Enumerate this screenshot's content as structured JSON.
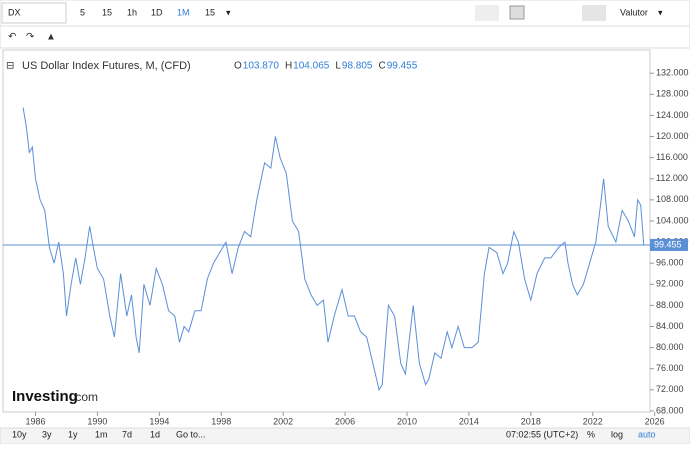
{
  "toolbar": {
    "symbol": "DX",
    "intervals": [
      "5",
      "15",
      "1h",
      "1D",
      "1M"
    ],
    "interval_select": "15",
    "language": "Valutor"
  },
  "bottom_bar": {
    "ranges": [
      "10y",
      "3y",
      "1y",
      "1m",
      "7d",
      "1d"
    ],
    "goto": "Go to...",
    "time": "07:02:55 (UTC+2)",
    "options": [
      "%",
      "log",
      "auto"
    ]
  },
  "chart_data": {
    "type": "line",
    "title": "US Dollar Index Futures, M, (CFD)",
    "ohlc": [
      {
        "label": "O",
        "text": "103.870"
      },
      {
        "label": "H",
        "text": "104.065"
      },
      {
        "label": "L",
        "text": "98.805"
      },
      {
        "label": "C",
        "text": "99.455"
      }
    ],
    "watermark": [
      "Investing",
      ".com"
    ],
    "last_price": 99.455,
    "xlim": [
      1983.9,
      2025.7
    ],
    "xticks": [
      1986,
      1990,
      1994,
      1998,
      2002,
      2006,
      2010,
      2014,
      2018,
      2022,
      2026
    ],
    "ylim": [
      67.8,
      136.4
    ],
    "yticks": [
      {
        "value": 68,
        "label": "68.000"
      },
      {
        "value": 72,
        "label": "72.000"
      },
      {
        "value": 76,
        "label": "76.000"
      },
      {
        "value": 80,
        "label": "80.000"
      },
      {
        "value": 84,
        "label": "84.000"
      },
      {
        "value": 88,
        "label": "88.000"
      },
      {
        "value": 92,
        "label": "92.000"
      },
      {
        "value": 96,
        "label": "96.000"
      },
      {
        "value": 100,
        "label": "100.000"
      },
      {
        "value": 104,
        "label": "104.000"
      },
      {
        "value": 108,
        "label": "108.000"
      },
      {
        "value": 112,
        "label": "112.000"
      },
      {
        "value": 116,
        "label": "116.000"
      },
      {
        "value": 120,
        "label": "120.000"
      },
      {
        "value": 124,
        "label": "124.000"
      },
      {
        "value": 128,
        "label": "128.000"
      },
      {
        "value": 132,
        "label": "132.000"
      }
    ],
    "series": [
      {
        "color": "#5b8fd6",
        "x": [
          1985.2,
          1985.4,
          1985.6,
          1985.8,
          1986.0,
          1986.3,
          1986.6,
          1986.9,
          1987.2,
          1987.5,
          1987.8,
          1988.0,
          1988.3,
          1988.6,
          1988.9,
          1989.2,
          1989.5,
          1989.8,
          1990.0,
          1990.4,
          1990.8,
          1991.1,
          1991.5,
          1991.9,
          1992.2,
          1992.5,
          1992.7,
          1993.0,
          1993.4,
          1993.8,
          1994.2,
          1994.6,
          1995.0,
          1995.3,
          1995.6,
          1995.9,
          1996.3,
          1996.7,
          1997.1,
          1997.5,
          1997.9,
          1998.3,
          1998.7,
          1999.1,
          1999.5,
          1999.9,
          2000.3,
          2000.8,
          2001.2,
          2001.5,
          2001.8,
          2002.2,
          2002.6,
          2003.0,
          2003.4,
          2003.8,
          2004.2,
          2004.6,
          2004.9,
          2005.3,
          2005.8,
          2006.2,
          2006.6,
          2007.0,
          2007.4,
          2007.8,
          2008.2,
          2008.4,
          2008.8,
          2009.2,
          2009.6,
          2009.9,
          2010.4,
          2010.8,
          2011.2,
          2011.4,
          2011.8,
          2012.2,
          2012.6,
          2012.9,
          2013.3,
          2013.7,
          2014.2,
          2014.6,
          2015.0,
          2015.3,
          2015.8,
          2016.2,
          2016.5,
          2016.9,
          2017.2,
          2017.6,
          2018.0,
          2018.4,
          2018.9,
          2019.3,
          2019.8,
          2020.2,
          2020.4,
          2020.7,
          2021.0,
          2021.4,
          2021.8,
          2022.2,
          2022.5,
          2022.7,
          2023.0,
          2023.5,
          2023.9,
          2024.3,
          2024.7,
          2024.9,
          2025.1,
          2025.3
        ],
        "values": [
          125.5,
          122,
          117,
          118,
          112,
          108,
          106,
          99,
          96,
          100,
          94,
          86,
          92,
          97,
          92,
          97,
          103,
          98,
          95,
          93,
          86,
          82,
          94,
          86,
          90,
          82,
          79,
          92,
          88,
          95,
          92,
          87,
          86,
          81,
          84,
          83,
          87,
          87,
          93,
          96,
          98,
          100,
          94,
          99,
          102,
          101,
          108,
          115,
          114,
          120,
          116,
          113,
          104,
          102,
          93,
          90,
          88,
          89,
          81,
          86,
          91,
          86,
          86,
          83,
          82,
          77,
          72,
          73,
          88,
          86,
          77,
          75,
          88,
          77,
          73,
          74,
          79,
          78,
          83,
          80,
          84,
          80,
          80,
          81,
          94,
          99,
          98,
          94,
          96,
          102,
          100,
          93,
          89,
          94,
          97,
          97,
          99,
          100,
          96,
          92,
          90,
          92,
          96,
          100,
          107,
          112,
          103,
          100,
          106,
          104,
          101,
          108,
          107,
          99.455
        ]
      }
    ]
  }
}
